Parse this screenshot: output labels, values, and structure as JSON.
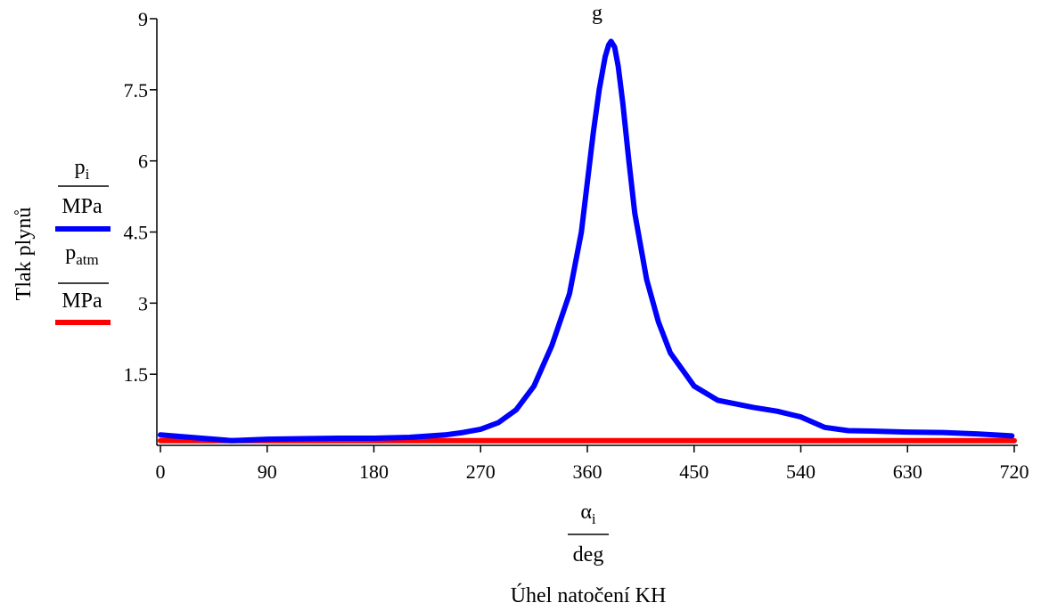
{
  "chart_data": {
    "type": "line",
    "title_fragment": "g",
    "ylabel": "Tlak plynů",
    "xlabel": "Úhel natočení KH",
    "x_fraction": {
      "num_base": "α",
      "num_sub": "i",
      "den": "deg"
    },
    "legend": [
      {
        "num_base": "p",
        "num_sub": "i",
        "den": "MPa",
        "color": "#0000ff"
      },
      {
        "num_base": "p",
        "num_sub": "atm",
        "den": "MPa",
        "color": "#ff0000"
      }
    ],
    "xlim": [
      0,
      720
    ],
    "ylim": [
      0,
      9
    ],
    "xticks": [
      0,
      90,
      180,
      270,
      360,
      450,
      540,
      630,
      720
    ],
    "yticks": [
      1.5,
      3,
      4.5,
      6,
      7.5,
      9
    ],
    "ytick_labels": [
      "1.5",
      "3",
      "4.5",
      "6",
      "7.5",
      "9"
    ],
    "series": [
      {
        "color": "#0000ff",
        "x": [
          0,
          30,
          60,
          90,
          120,
          150,
          180,
          210,
          240,
          255,
          270,
          285,
          300,
          315,
          330,
          345,
          355,
          365,
          370,
          375,
          378,
          380,
          383,
          386,
          390,
          395,
          400,
          410,
          420,
          430,
          450,
          470,
          500,
          520,
          540,
          560,
          580,
          600,
          630,
          660,
          690,
          718
        ],
        "y": [
          0.22,
          0.16,
          0.1,
          0.13,
          0.14,
          0.15,
          0.15,
          0.17,
          0.22,
          0.27,
          0.34,
          0.48,
          0.75,
          1.25,
          2.1,
          3.2,
          4.5,
          6.6,
          7.5,
          8.2,
          8.45,
          8.52,
          8.4,
          8.0,
          7.2,
          6.0,
          4.9,
          3.5,
          2.6,
          1.95,
          1.25,
          0.95,
          0.8,
          0.72,
          0.6,
          0.38,
          0.31,
          0.3,
          0.28,
          0.27,
          0.24,
          0.2
        ]
      },
      {
        "color": "#ff0000",
        "x": [
          0,
          720
        ],
        "y": [
          0.1,
          0.1
        ]
      }
    ]
  }
}
